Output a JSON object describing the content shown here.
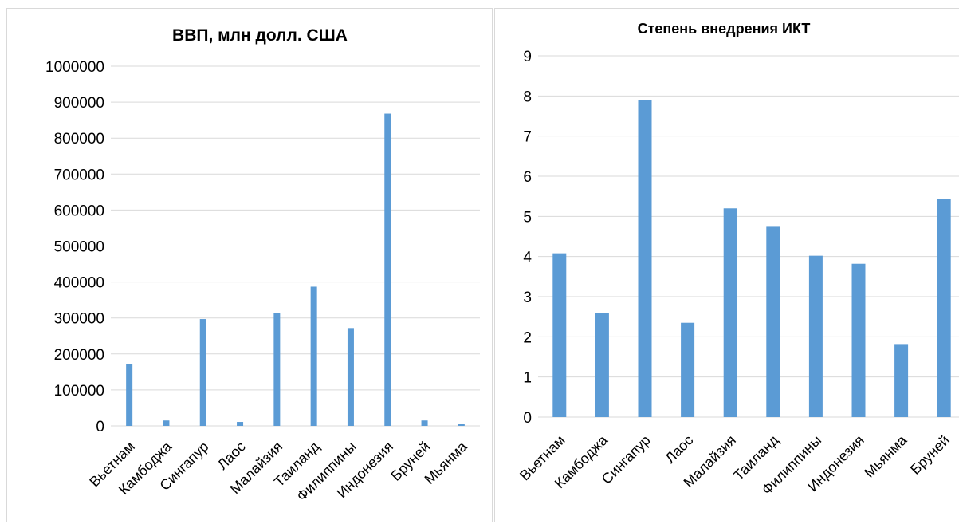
{
  "chart_data": [
    {
      "type": "bar",
      "title": "ВВП, млн долл. США",
      "categories": [
        "Вьетнам",
        "Камбоджа",
        "Сингапур",
        "Лаос",
        "Малайзия",
        "Таиланд",
        "Филиппины",
        "Индонезия",
        "Бруней",
        "Мьянма"
      ],
      "values": [
        171000,
        15000,
        297000,
        11000,
        313000,
        387000,
        272000,
        868000,
        15000,
        6000
      ],
      "yticks": [
        "0",
        "100000",
        "200000",
        "300000",
        "400000",
        "500000",
        "600000",
        "700000",
        "800000",
        "900000",
        "1000000"
      ],
      "ylim": [
        0,
        1000000
      ],
      "xlabel": "",
      "ylabel": "",
      "grid": true,
      "color": "#5B9BD5"
    },
    {
      "type": "bar",
      "title": "Степень внедрения ИКТ",
      "categories": [
        "Вьетнам",
        "Камбоджа",
        "Сингапур",
        "Лаос",
        "Малайзия",
        "Таиланд",
        "Филиппины",
        "Индонезия",
        "Мьянма",
        "Бруней"
      ],
      "values": [
        4.08,
        2.6,
        7.9,
        2.35,
        5.2,
        4.76,
        4.02,
        3.82,
        1.82,
        5.43
      ],
      "yticks": [
        "0",
        "1",
        "2",
        "3",
        "4",
        "5",
        "6",
        "7",
        "8",
        "9"
      ],
      "ylim": [
        0,
        9
      ],
      "xlabel": "",
      "ylabel": "",
      "grid": true,
      "color": "#5B9BD5"
    }
  ]
}
